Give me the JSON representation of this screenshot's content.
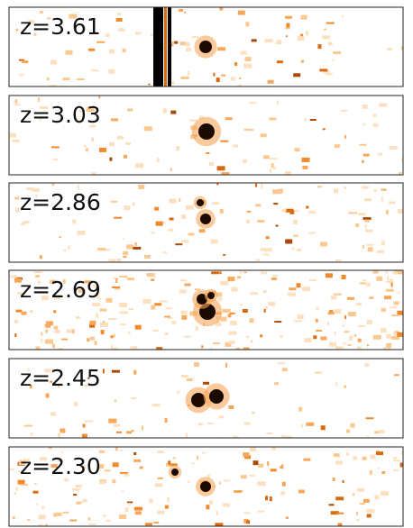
{
  "panels": [
    {
      "label": "z=3.61"
    },
    {
      "label": "z=3.03"
    },
    {
      "label": "z=2.86"
    },
    {
      "label": "z=2.69"
    },
    {
      "label": "z=2.45"
    },
    {
      "label": "z=2.30"
    }
  ]
}
